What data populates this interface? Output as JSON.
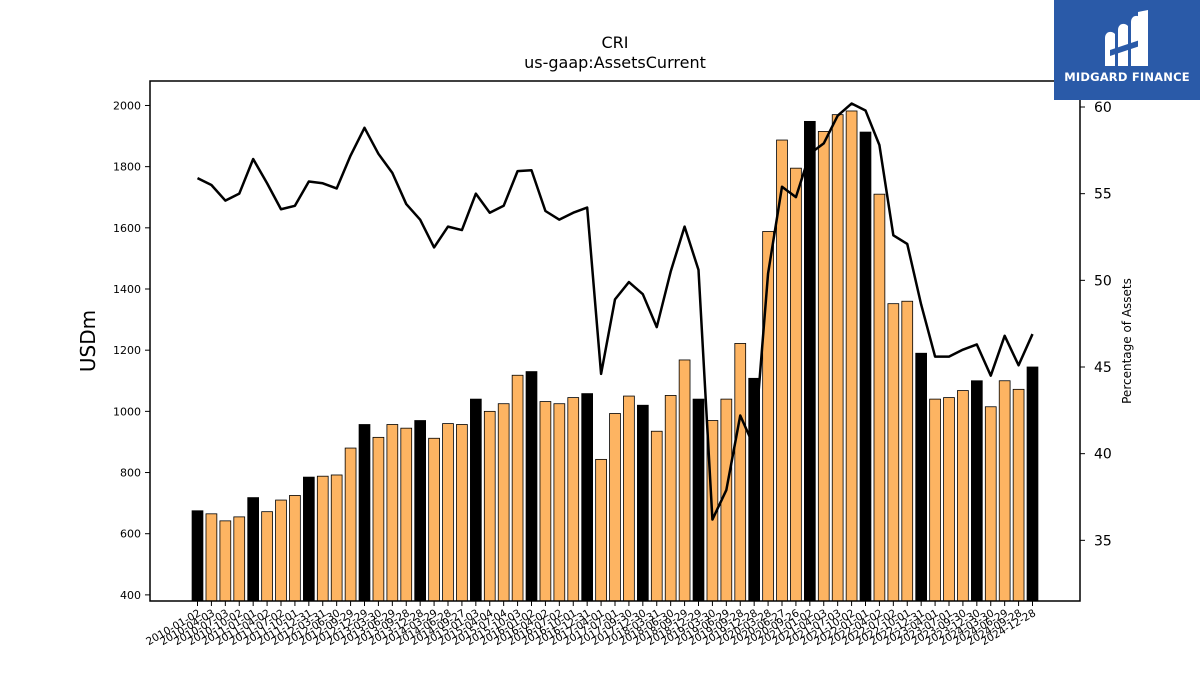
{
  "logo": {
    "brand": "MIDGARD FINANCE",
    "background": "#2a5aa8"
  },
  "chart_data": {
    "type": "bar",
    "title": "CRI",
    "subtitle": "us-gaap:AssetsCurrent",
    "ylabel": "USDm",
    "y2label": "Percentage of Assets",
    "ylim": [
      380,
      2080
    ],
    "y2lim": [
      31.5,
      61.5
    ],
    "yticks": [
      400,
      600,
      800,
      1000,
      1200,
      1400,
      1600,
      1800,
      2000
    ],
    "y2ticks": [
      35,
      40,
      45,
      50,
      55,
      60
    ],
    "grid": false,
    "colors": {
      "bar": "#fdb462",
      "bar_highlight": "#000000",
      "line": "#000000"
    },
    "categories": [
      "2010-01-02",
      "2010-04-03",
      "2010-07-03",
      "2010-10-02",
      "2011-01-01",
      "2011-04-02",
      "2011-07-02",
      "2011-10-01",
      "2011-12-31",
      "2012-03-31",
      "2012-06-30",
      "2012-09-29",
      "2012-12-29",
      "2013-03-30",
      "2013-06-29",
      "2013-09-28",
      "2013-12-28",
      "2014-03-29",
      "2014-06-28",
      "2014-09-27",
      "2015-01-03",
      "2015-04-04",
      "2015-07-04",
      "2015-10-03",
      "2016-01-02",
      "2016-04-02",
      "2016-07-02",
      "2016-10-01",
      "2016-12-31",
      "2017-04-01",
      "2017-07-01",
      "2017-09-30",
      "2017-12-30",
      "2018-03-31",
      "2018-06-30",
      "2018-09-29",
      "2018-12-29",
      "2019-03-30",
      "2019-06-29",
      "2019-09-28",
      "2019-12-28",
      "2020-03-28",
      "2020-06-27",
      "2020-09-26",
      "2021-01-02",
      "2021-04-03",
      "2021-07-03",
      "2021-10-02",
      "2022-01-01",
      "2022-04-02",
      "2022-07-02",
      "2022-10-01",
      "2022-12-31",
      "2023-04-01",
      "2023-07-01",
      "2023-09-30",
      "2023-12-30",
      "2024-03-30",
      "2024-06-29",
      "2024-09-28",
      "2024-12-28"
    ],
    "values": [
      675,
      665,
      642,
      655,
      718,
      672,
      710,
      725,
      785,
      788,
      792,
      880,
      957,
      915,
      957,
      945,
      970,
      912,
      960,
      957,
      1040,
      1000,
      1025,
      1118,
      1130,
      1032,
      1025,
      1045,
      1058,
      843,
      993,
      1050,
      1020,
      935,
      1052,
      1168,
      1040,
      970,
      1040,
      1222,
      1108,
      1588,
      1887,
      1795,
      1948,
      1915,
      1970,
      1982,
      1913,
      1710,
      1352,
      1360,
      1190,
      1040,
      1045,
      1068,
      1100,
      1015,
      1100,
      1072,
      1145
    ],
    "highlight": [
      true,
      false,
      false,
      false,
      true,
      false,
      false,
      false,
      true,
      false,
      false,
      false,
      true,
      false,
      false,
      false,
      true,
      false,
      false,
      false,
      true,
      false,
      false,
      false,
      true,
      false,
      false,
      false,
      true,
      false,
      false,
      false,
      true,
      false,
      false,
      false,
      true,
      false,
      false,
      false,
      true,
      false,
      false,
      false,
      true,
      false,
      false,
      false,
      true,
      false,
      false,
      false,
      true,
      false,
      false,
      false,
      true,
      false,
      false,
      false,
      true
    ],
    "line_values": [
      55.9,
      55.5,
      54.6,
      55.0,
      57.0,
      55.6,
      54.1,
      54.3,
      55.7,
      55.6,
      55.3,
      57.2,
      58.8,
      57.3,
      56.2,
      54.4,
      53.5,
      51.9,
      53.1,
      52.9,
      55.0,
      53.9,
      54.3,
      56.3,
      56.35,
      54.0,
      53.5,
      53.9,
      54.2,
      44.6,
      48.9,
      49.9,
      49.2,
      47.3,
      50.5,
      53.1,
      50.6,
      36.2,
      37.9,
      42.2,
      40.4,
      50.4,
      55.4,
      54.8,
      57.3,
      57.9,
      59.5,
      60.2,
      59.8,
      57.8,
      52.6,
      52.1,
      48.6,
      45.6,
      45.6,
      46.0,
      46.3,
      44.5,
      46.8,
      45.1,
      46.9
    ]
  }
}
